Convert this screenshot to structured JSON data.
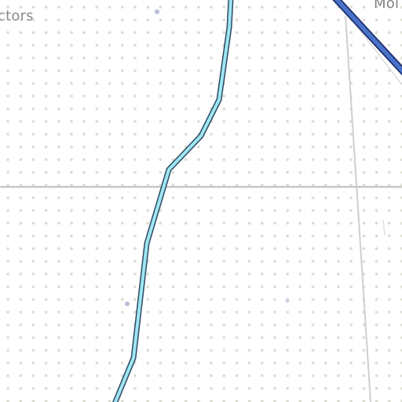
{
  "map": {
    "labels": {
      "top_left": "ctors",
      "top_right": "Mol"
    },
    "colors": {
      "background": "#ffffff",
      "dot_pattern": "#dcdcd2",
      "minor_road": "#c8c8c8",
      "river_fill": "#9fe6f0",
      "river_stroke": "#2d4a66",
      "highway_fill": "#4a72c8",
      "highway_stroke": "#1c2f6e",
      "poi_marker": "#b8bfd6"
    }
  }
}
